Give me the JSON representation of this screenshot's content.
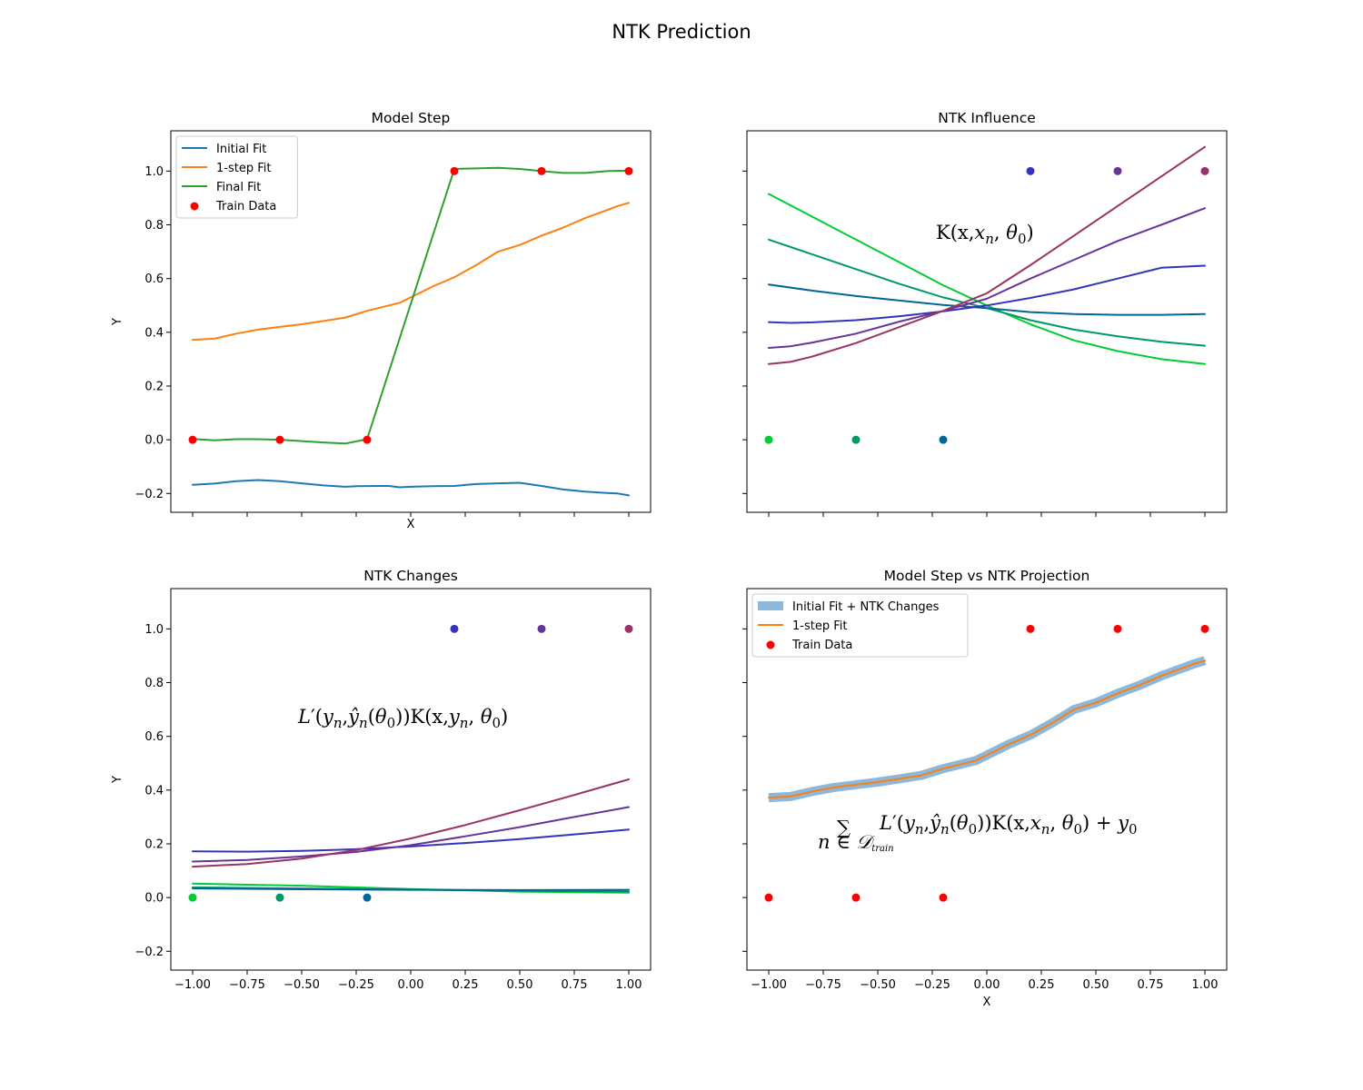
{
  "figure_title": "NTK Prediction",
  "chart_data": [
    {
      "type": "line",
      "title": "Model Step",
      "xlabel": "X",
      "ylabel": "Y",
      "xlim": [
        -1.1,
        1.1
      ],
      "ylim": [
        -0.27,
        1.15
      ],
      "xticks": [
        -1.0,
        -0.75,
        -0.5,
        -0.25,
        0.0,
        0.25,
        0.5,
        0.75,
        1.0
      ],
      "yticks": [
        -0.2,
        0.0,
        0.2,
        0.4,
        0.6,
        0.8,
        1.0
      ],
      "legend_position": "top-left",
      "legend": [
        {
          "label": "Initial Fit",
          "kind": "line",
          "color": "#1f77b4"
        },
        {
          "label": "1-step Fit",
          "kind": "line",
          "color": "#ff7f0e"
        },
        {
          "label": "Final Fit",
          "kind": "line",
          "color": "#2ca02c"
        },
        {
          "label": "Train Data",
          "kind": "dot",
          "color": "#ff0000"
        }
      ],
      "series": [
        {
          "name": "Initial Fit",
          "color": "#1f77b4",
          "width": 2,
          "x": [
            -1.0,
            -0.9,
            -0.8,
            -0.7,
            -0.6,
            -0.5,
            -0.4,
            -0.3,
            -0.25,
            -0.15,
            -0.1,
            -0.05,
            0.0,
            0.1,
            0.2,
            0.3,
            0.4,
            0.5,
            0.6,
            0.7,
            0.8,
            0.9,
            0.95,
            1.0
          ],
          "y": [
            -0.168,
            -0.163,
            -0.154,
            -0.15,
            -0.154,
            -0.162,
            -0.17,
            -0.175,
            -0.173,
            -0.172,
            -0.172,
            -0.177,
            -0.175,
            -0.173,
            -0.172,
            -0.165,
            -0.162,
            -0.16,
            -0.172,
            -0.185,
            -0.193,
            -0.198,
            -0.2,
            -0.207
          ]
        },
        {
          "name": "1-step Fit",
          "color": "#ff7f0e",
          "width": 2,
          "x": [
            -1.0,
            -0.9,
            -0.8,
            -0.7,
            -0.6,
            -0.5,
            -0.4,
            -0.3,
            -0.2,
            -0.1,
            -0.05,
            0.0,
            0.1,
            0.2,
            0.3,
            0.4,
            0.5,
            0.6,
            0.7,
            0.8,
            0.9,
            0.95,
            1.0
          ],
          "y": [
            0.372,
            0.376,
            0.395,
            0.41,
            0.42,
            0.43,
            0.442,
            0.455,
            0.48,
            0.5,
            0.51,
            0.53,
            0.57,
            0.605,
            0.65,
            0.7,
            0.725,
            0.76,
            0.79,
            0.825,
            0.855,
            0.87,
            0.882
          ]
        },
        {
          "name": "Final Fit",
          "color": "#2ca02c",
          "width": 2,
          "x": [
            -1.0,
            -0.9,
            -0.8,
            -0.7,
            -0.6,
            -0.5,
            -0.4,
            -0.3,
            -0.2,
            0.2,
            0.3,
            0.4,
            0.5,
            0.6,
            0.7,
            0.8,
            0.9,
            1.0
          ],
          "y": [
            0.003,
            -0.002,
            0.002,
            0.002,
            0.0,
            -0.005,
            -0.01,
            -0.014,
            0.002,
            1.008,
            1.01,
            1.012,
            1.008,
            1.0,
            0.993,
            0.993,
            1.0,
            1.002
          ]
        }
      ],
      "points": [
        {
          "x": -1.0,
          "y": 0,
          "color": "#ff0000"
        },
        {
          "x": -0.6,
          "y": 0,
          "color": "#ff0000"
        },
        {
          "x": -0.2,
          "y": 0,
          "color": "#ff0000"
        },
        {
          "x": 0.2,
          "y": 1,
          "color": "#ff0000"
        },
        {
          "x": 0.6,
          "y": 1,
          "color": "#ff0000"
        },
        {
          "x": 1.0,
          "y": 1,
          "color": "#ff0000"
        }
      ]
    },
    {
      "type": "line",
      "title": "NTK Influence",
      "xlabel": "",
      "ylabel": "",
      "xlim": [
        -1.1,
        1.1
      ],
      "ylim": [
        -0.27,
        1.15
      ],
      "xticks": [
        -1.0,
        -0.75,
        -0.5,
        -0.25,
        0.0,
        0.25,
        0.5,
        0.75,
        1.0
      ],
      "yticks": [
        -0.2,
        0.0,
        0.2,
        0.4,
        0.6,
        0.8,
        1.0
      ],
      "annotation": {
        "prefix": "K(x,",
        "sym": "x",
        "sub": "n",
        "mid": ", ",
        "theta": "θ",
        "theta_sub": "0",
        "suffix": ")"
      },
      "series": [
        {
          "name": "K(x, x=-1.0)",
          "color": "#00cc33",
          "width": 2,
          "x": [
            -1.0,
            -0.8,
            -0.6,
            -0.4,
            -0.2,
            0.0,
            0.2,
            0.4,
            0.6,
            0.8,
            1.0
          ],
          "y": [
            0.915,
            0.83,
            0.745,
            0.66,
            0.575,
            0.5,
            0.43,
            0.37,
            0.33,
            0.3,
            0.282
          ]
        },
        {
          "name": "K(x, x=-0.6)",
          "color": "#009966",
          "width": 2,
          "x": [
            -1.0,
            -0.8,
            -0.6,
            -0.4,
            -0.2,
            0.0,
            0.2,
            0.4,
            0.6,
            0.8,
            1.0
          ],
          "y": [
            0.745,
            0.69,
            0.635,
            0.58,
            0.53,
            0.49,
            0.445,
            0.41,
            0.385,
            0.365,
            0.35
          ]
        },
        {
          "name": "K(x, x=-0.2)",
          "color": "#006699",
          "width": 2,
          "x": [
            -1.0,
            -0.8,
            -0.6,
            -0.4,
            -0.2,
            0.0,
            0.2,
            0.4,
            0.6,
            0.8,
            1.0
          ],
          "y": [
            0.578,
            0.555,
            0.535,
            0.518,
            0.502,
            0.49,
            0.475,
            0.468,
            0.465,
            0.465,
            0.468
          ]
        },
        {
          "name": "K(x, x=0.2)",
          "color": "#3333bb",
          "width": 2,
          "x": [
            -1.0,
            -0.9,
            -0.8,
            -0.6,
            -0.4,
            -0.2,
            0.0,
            0.2,
            0.4,
            0.6,
            0.8,
            1.0
          ],
          "y": [
            0.438,
            0.435,
            0.437,
            0.445,
            0.46,
            0.478,
            0.5,
            0.528,
            0.56,
            0.6,
            0.64,
            0.648
          ]
        },
        {
          "name": "K(x, x=0.6)",
          "color": "#663399",
          "width": 2,
          "x": [
            -1.0,
            -0.9,
            -0.8,
            -0.6,
            -0.4,
            -0.2,
            0.0,
            0.2,
            0.4,
            0.6,
            0.8,
            1.0
          ],
          "y": [
            0.342,
            0.348,
            0.362,
            0.395,
            0.44,
            0.48,
            0.525,
            0.6,
            0.67,
            0.74,
            0.8,
            0.862
          ]
        },
        {
          "name": "K(x, x=1.0)",
          "color": "#993366",
          "width": 2,
          "x": [
            -1.0,
            -0.9,
            -0.8,
            -0.6,
            -0.4,
            -0.2,
            0.0,
            0.2,
            0.4,
            0.6,
            0.8,
            1.0
          ],
          "y": [
            0.282,
            0.29,
            0.31,
            0.36,
            0.42,
            0.48,
            0.545,
            0.65,
            0.76,
            0.87,
            0.98,
            1.09
          ]
        }
      ],
      "points": [
        {
          "x": -1.0,
          "y": 0,
          "color": "#00cc33"
        },
        {
          "x": -0.6,
          "y": 0,
          "color": "#009966"
        },
        {
          "x": -0.2,
          "y": 0,
          "color": "#006699"
        },
        {
          "x": 0.2,
          "y": 1,
          "color": "#3333bb"
        },
        {
          "x": 0.6,
          "y": 1,
          "color": "#663399"
        },
        {
          "x": 1.0,
          "y": 1,
          "color": "#993366"
        }
      ]
    },
    {
      "type": "line",
      "title": "NTK Changes",
      "xlabel": "",
      "ylabel": "Y",
      "xlim": [
        -1.1,
        1.1
      ],
      "ylim": [
        -0.27,
        1.15
      ],
      "xticks": [
        -1.0,
        -0.75,
        -0.5,
        -0.25,
        0.0,
        0.25,
        0.5,
        0.75,
        1.0
      ],
      "xticklabels": [
        "−1.00",
        "−0.75",
        "−0.50",
        "−0.25",
        "0.00",
        "0.25",
        "0.50",
        "0.75",
        "1.00"
      ],
      "yticks": [
        -0.2,
        0.0,
        0.2,
        0.4,
        0.6,
        0.8,
        1.0
      ],
      "annotation": {
        "L": "L",
        "prime": "′",
        "y": "y",
        "n": "n",
        "yhat": "ŷ",
        "theta": "θ",
        "zero": "0",
        "tail": "K(x,"
      },
      "series": [
        {
          "name": "x=-1.0",
          "color": "#00cc33",
          "width": 2,
          "x": [
            -1.0,
            -0.5,
            0.0,
            0.5,
            1.0
          ],
          "y": [
            0.052,
            0.044,
            0.032,
            0.022,
            0.018
          ]
        },
        {
          "name": "x=-0.6",
          "color": "#009966",
          "width": 2,
          "x": [
            -1.0,
            -0.5,
            0.0,
            0.5,
            1.0
          ],
          "y": [
            0.038,
            0.034,
            0.03,
            0.025,
            0.022
          ]
        },
        {
          "name": "x=-0.2",
          "color": "#006699",
          "width": 2,
          "x": [
            -1.0,
            -0.5,
            0.0,
            0.5,
            1.0
          ],
          "y": [
            0.034,
            0.031,
            0.029,
            0.028,
            0.029
          ]
        },
        {
          "name": "x=0.2",
          "color": "#3333bb",
          "width": 2,
          "x": [
            -1.0,
            -0.75,
            -0.5,
            -0.25,
            0.0,
            0.25,
            0.5,
            0.75,
            1.0
          ],
          "y": [
            0.172,
            0.171,
            0.174,
            0.18,
            0.19,
            0.203,
            0.218,
            0.235,
            0.253
          ]
        },
        {
          "name": "x=0.6",
          "color": "#663399",
          "width": 2,
          "x": [
            -1.0,
            -0.75,
            -0.5,
            -0.25,
            0.0,
            0.25,
            0.5,
            0.75,
            1.0
          ],
          "y": [
            0.134,
            0.14,
            0.153,
            0.17,
            0.195,
            0.228,
            0.262,
            0.3,
            0.337
          ]
        },
        {
          "name": "x=1.0",
          "color": "#993366",
          "width": 2,
          "x": [
            -1.0,
            -0.75,
            -0.5,
            -0.25,
            0.0,
            0.25,
            0.5,
            0.75,
            1.0
          ],
          "y": [
            0.115,
            0.125,
            0.145,
            0.177,
            0.22,
            0.27,
            0.325,
            0.382,
            0.44
          ]
        }
      ],
      "points": [
        {
          "x": -1.0,
          "y": 0,
          "color": "#00cc33"
        },
        {
          "x": -0.6,
          "y": 0,
          "color": "#009966"
        },
        {
          "x": -0.2,
          "y": 0,
          "color": "#006699"
        },
        {
          "x": 0.2,
          "y": 1,
          "color": "#3333bb"
        },
        {
          "x": 0.6,
          "y": 1,
          "color": "#663399"
        },
        {
          "x": 1.0,
          "y": 1,
          "color": "#993366"
        }
      ]
    },
    {
      "type": "line",
      "title": "Model Step vs NTK Projection",
      "xlabel": "X",
      "ylabel": "",
      "xlim": [
        -1.1,
        1.1
      ],
      "ylim": [
        -0.27,
        1.15
      ],
      "xticks": [
        -1.0,
        -0.75,
        -0.5,
        -0.25,
        0.0,
        0.25,
        0.5,
        0.75,
        1.0
      ],
      "xticklabels": [
        "−1.00",
        "−0.75",
        "−0.50",
        "−0.25",
        "0.00",
        "0.25",
        "0.50",
        "0.75",
        "1.00"
      ],
      "yticks": [
        -0.2,
        0.0,
        0.2,
        0.4,
        0.6,
        0.8,
        1.0
      ],
      "legend_position": "top-left",
      "legend": [
        {
          "label": "Initial Fit + NTK Changes",
          "kind": "thick",
          "color": "#8cb8dc"
        },
        {
          "label": "1-step Fit",
          "kind": "line",
          "color": "#ff7f0e"
        },
        {
          "label": "Train Data",
          "kind": "dot",
          "color": "#ff0000"
        }
      ],
      "annotation": {
        "sum": "∑",
        "under": "n ∈ 𝒟",
        "under_sub": "train",
        "L": "L",
        "prime": "′",
        "y": "y",
        "n": "n",
        "yhat": "ŷ",
        "theta": "θ",
        "zero": "0",
        "tail": "K(x,",
        "plus": "+"
      },
      "series": [
        {
          "name": "Initial Fit + NTK Changes",
          "color": "#8cb8dc",
          "width": 10,
          "x": [
            -1.0,
            -0.9,
            -0.8,
            -0.7,
            -0.6,
            -0.5,
            -0.4,
            -0.3,
            -0.2,
            -0.1,
            -0.05,
            0.0,
            0.1,
            0.2,
            0.3,
            0.4,
            0.5,
            0.6,
            0.7,
            0.8,
            0.9,
            0.95,
            1.0
          ],
          "y": [
            0.372,
            0.376,
            0.395,
            0.41,
            0.42,
            0.43,
            0.442,
            0.455,
            0.48,
            0.5,
            0.51,
            0.53,
            0.57,
            0.605,
            0.65,
            0.7,
            0.725,
            0.76,
            0.79,
            0.825,
            0.855,
            0.87,
            0.882
          ]
        },
        {
          "name": "1-step Fit",
          "color": "#ff7f0e",
          "width": 2,
          "x": [
            -1.0,
            -0.9,
            -0.8,
            -0.7,
            -0.6,
            -0.5,
            -0.4,
            -0.3,
            -0.2,
            -0.1,
            -0.05,
            0.0,
            0.1,
            0.2,
            0.3,
            0.4,
            0.5,
            0.6,
            0.7,
            0.8,
            0.9,
            0.95,
            1.0
          ],
          "y": [
            0.372,
            0.376,
            0.395,
            0.41,
            0.42,
            0.43,
            0.442,
            0.455,
            0.48,
            0.5,
            0.51,
            0.53,
            0.57,
            0.605,
            0.65,
            0.7,
            0.725,
            0.76,
            0.79,
            0.825,
            0.855,
            0.87,
            0.882
          ]
        }
      ],
      "points": [
        {
          "x": -1.0,
          "y": 0,
          "color": "#ff0000"
        },
        {
          "x": -0.6,
          "y": 0,
          "color": "#ff0000"
        },
        {
          "x": -0.2,
          "y": 0,
          "color": "#ff0000"
        },
        {
          "x": 0.2,
          "y": 1,
          "color": "#ff0000"
        },
        {
          "x": 0.6,
          "y": 1,
          "color": "#ff0000"
        },
        {
          "x": 1.0,
          "y": 1,
          "color": "#ff0000"
        }
      ]
    }
  ]
}
